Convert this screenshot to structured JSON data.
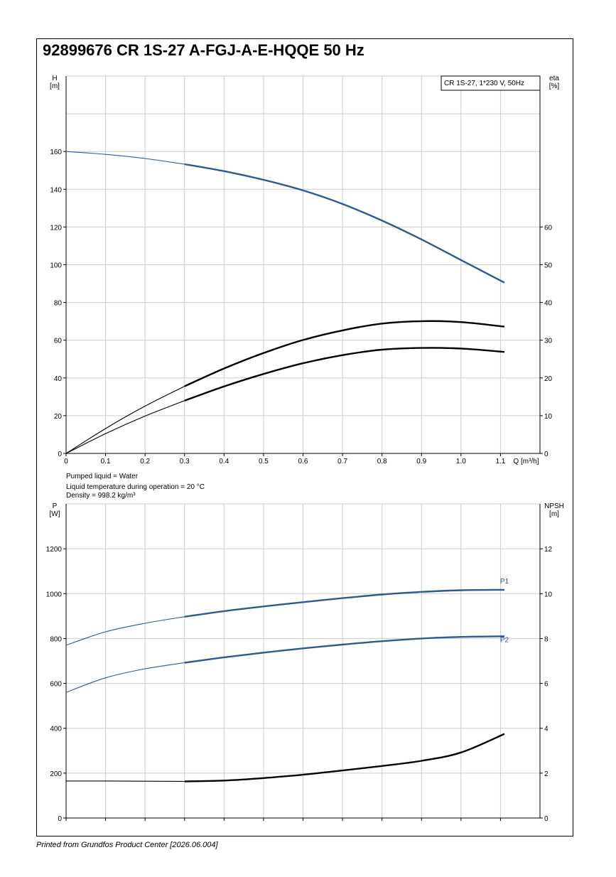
{
  "title": "92899676 CR 1S-27 A-FGJ-A-E-HQQE 50 Hz",
  "footer": "Printed from Grundfos Product Center [2026.06.004]",
  "colors": {
    "blue": "#2f5a8c",
    "black": "#000000",
    "grid": "#cccccc"
  },
  "chart_data": [
    {
      "type": "line",
      "title": "",
      "legend_box": "CR 1S-27, 1*230 V, 50Hz",
      "left_axis": {
        "label_line1": "H",
        "label_line2": "[m]",
        "range": [
          0,
          200
        ],
        "ticks": [
          0,
          20,
          40,
          60,
          80,
          100,
          120,
          140,
          160
        ]
      },
      "right_axis": {
        "label_line1": "eta",
        "label_line2": "[%]",
        "range": [
          0,
          100
        ],
        "ticks": [
          0,
          10,
          20,
          30,
          40,
          50,
          60
        ]
      },
      "x_axis": {
        "label": "Q [m³/h]",
        "range": [
          0,
          1.2
        ],
        "ticks": [
          0,
          0.1,
          0.2,
          0.3,
          0.4,
          0.5,
          0.6,
          0.7,
          0.8,
          0.9,
          1.0,
          1.1
        ],
        "tick_labels": [
          "0",
          "0.1",
          "0.2",
          "0.3",
          "0.4",
          "0.5",
          "0.6",
          "0.7",
          "0.8",
          "0.9",
          "1.0",
          "1.1"
        ]
      },
      "grid": true,
      "operating_range_start_q": 0.3,
      "series": [
        {
          "axis": "left",
          "color": "#2f5a8c",
          "x": [
            0,
            0.1,
            0.2,
            0.3,
            0.4,
            0.5,
            0.6,
            0.7,
            0.8,
            0.9,
            1.0,
            1.11
          ],
          "values": [
            160,
            158.5,
            156.3,
            153.3,
            149.6,
            145,
            139.4,
            132.2,
            123.4,
            113.4,
            102.5,
            90.5
          ]
        },
        {
          "axis": "left",
          "color": "#000000",
          "x": [
            0,
            0.1,
            0.2,
            0.3,
            0.4,
            0.5,
            0.6,
            0.7,
            0.8,
            0.9,
            1.0,
            1.11
          ],
          "values": [
            0,
            13.2,
            25.1,
            35.6,
            45,
            53.2,
            60.1,
            65.2,
            68.8,
            70.1,
            69.6,
            67.2
          ]
        },
        {
          "axis": "left",
          "color": "#000000",
          "x": [
            0,
            0.1,
            0.2,
            0.3,
            0.4,
            0.5,
            0.6,
            0.7,
            0.8,
            0.9,
            1.0,
            1.11
          ],
          "values": [
            0,
            10.5,
            19.8,
            28,
            35.5,
            42.1,
            47.8,
            52.1,
            55,
            55.9,
            55.6,
            53.8
          ]
        }
      ],
      "notes": [
        "Pumped liquid = Water",
        "Liquid temperature during operation = 20 °C",
        "Density = 998.2 kg/m³"
      ]
    },
    {
      "type": "line",
      "title": "",
      "left_axis": {
        "label_line1": "P",
        "label_line2": "[W]",
        "range": [
          0,
          1400
        ],
        "ticks": [
          0,
          200,
          400,
          600,
          800,
          1000,
          1200
        ]
      },
      "right_axis": {
        "label_line1": "NPSH",
        "label_line2": "[m]",
        "range": [
          0,
          14
        ],
        "ticks": [
          0,
          2,
          4,
          6,
          8,
          10,
          12
        ]
      },
      "x_axis": {
        "range": [
          0,
          1.2
        ],
        "ticks": [
          0,
          0.1,
          0.2,
          0.3,
          0.4,
          0.5,
          0.6,
          0.7,
          0.8,
          0.9,
          1.0,
          1.1
        ]
      },
      "grid": true,
      "operating_range_start_q": 0.3,
      "series": [
        {
          "name": "P1",
          "axis": "left",
          "color": "#2f5a8c",
          "x": [
            0,
            0.1,
            0.2,
            0.3,
            0.4,
            0.5,
            0.6,
            0.7,
            0.8,
            0.9,
            1.0,
            1.11
          ],
          "values": [
            770,
            830,
            868,
            897,
            922,
            943,
            962,
            980,
            996,
            1008,
            1015,
            1017
          ]
        },
        {
          "name": "P2",
          "axis": "left",
          "color": "#2f5a8c",
          "x": [
            0,
            0.1,
            0.2,
            0.3,
            0.4,
            0.5,
            0.6,
            0.7,
            0.8,
            0.9,
            1.0,
            1.11
          ],
          "values": [
            560,
            625,
            665,
            692,
            716,
            737,
            756,
            773,
            788,
            800,
            807,
            810
          ]
        },
        {
          "axis": "left",
          "color": "#000000",
          "x": [
            0,
            0.1,
            0.2,
            0.3,
            0.4,
            0.5,
            0.6,
            0.7,
            0.8,
            0.9,
            1.0,
            1.11
          ],
          "values": [
            165,
            165,
            164,
            163,
            167,
            178,
            193,
            212,
            232,
            255,
            292,
            375
          ]
        }
      ]
    }
  ]
}
